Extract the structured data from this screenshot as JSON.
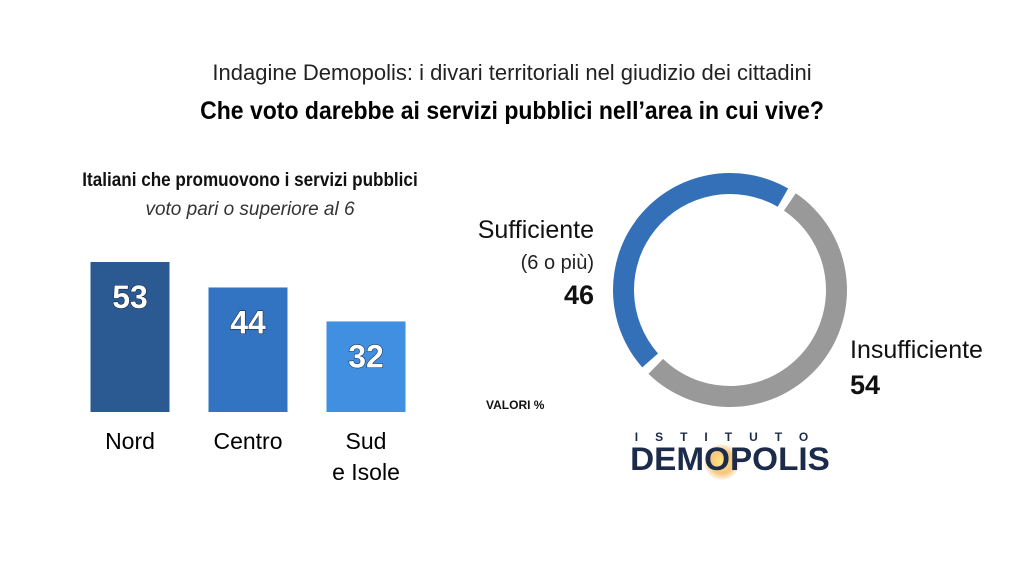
{
  "header": {
    "supertitle": "Indagine Demopolis: i divari territoriali nel giudizio dei cittadini",
    "title": "Che voto darebbe ai servizi pubblici nell’area in cui vive?"
  },
  "chart_data": [
    {
      "type": "bar",
      "title": "Italiani che promuovono i servizi pubblici",
      "subtitle": "voto pari o superiore al 6",
      "categories": [
        [
          "Nord"
        ],
        [
          "Centro"
        ],
        [
          "Sud",
          "e Isole"
        ]
      ],
      "values": [
        53,
        44,
        32
      ],
      "colors": [
        "#2b5a93",
        "#3374c2",
        "#418fe0"
      ],
      "ylim": [
        0,
        100
      ]
    },
    {
      "type": "pie",
      "style": "donut",
      "slices": [
        {
          "label": "Sufficiente",
          "sublabel": "(6 o più)",
          "value": 46,
          "color": "#3370b8"
        },
        {
          "label": "Insufficiente",
          "value": 54,
          "color": "#999999"
        }
      ],
      "note": "VALORI %"
    }
  ],
  "logo": {
    "top": "ISTITUTO",
    "main": "DEMOPOLIS"
  }
}
